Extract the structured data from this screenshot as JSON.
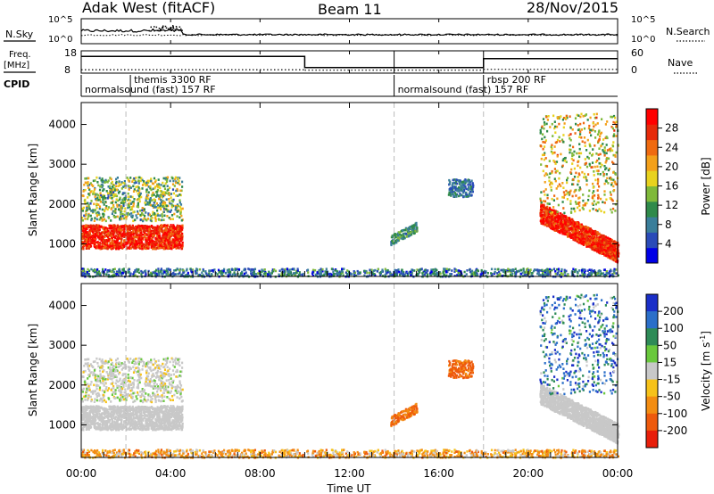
{
  "header": {
    "station": "Adak West (fitACF)",
    "beam": "Beam 11",
    "date": "28/Nov/2015"
  },
  "labels": {
    "nsky": "N.Sky",
    "nsearch": "N.Search",
    "freq_top": "Freq.",
    "freq_unit": "[MHz]",
    "nave": "Nave",
    "cpid": "CPID",
    "xlabel": "Time UT",
    "ylabel_range": "Slant Range [km]",
    "power_label": "Power [dB]",
    "velocity_label_main": "Velocity [m s",
    "velocity_label_exp": "-1",
    "velocity_label_end": "]"
  },
  "noise_panel": {
    "left_ticks": [
      "10^5",
      "10^0"
    ],
    "right_ticks": [
      "10^5",
      "10^0"
    ]
  },
  "freq_panel": {
    "left_ticks": [
      "18",
      "8"
    ],
    "right_ticks": [
      "60",
      "0"
    ],
    "freq_segments": [
      {
        "start": 0,
        "end": 10,
        "value": 15.5
      },
      {
        "start": 10,
        "end": 18,
        "value": 10.5
      },
      {
        "start": 18,
        "end": 24,
        "value": 14.5
      }
    ],
    "nave_segments": [
      {
        "start": 0,
        "end": 10,
        "value": 9
      },
      {
        "start": 10,
        "end": 18,
        "value": 8
      },
      {
        "start": 18,
        "end": 24,
        "value": 10
      }
    ]
  },
  "cpid": [
    {
      "label": "normalsound (fast) 157 RF",
      "t": 0
    },
    {
      "label": "themis 3300 RF",
      "t": 2.2
    },
    {
      "label": "normalsound (fast) 157 RF",
      "t": 14
    },
    {
      "label": "rbsp 200 RF",
      "t": 18
    }
  ],
  "chart_data": {
    "type": "heatmap",
    "title": "Adak West (fitACF)  Beam 11  28/Nov/2015",
    "xlabel": "Time UT",
    "ylabel": "Slant Range [km]",
    "x_ticks": [
      "00:00",
      "04:00",
      "08:00",
      "12:00",
      "16:00",
      "20:00",
      "00:00"
    ],
    "x_range_hours": [
      0,
      24
    ],
    "y_ticks": [
      1000,
      2000,
      3000,
      4000
    ],
    "y_range_km": [
      180,
      4550
    ],
    "mode_change_times_hours": [
      2,
      14,
      18
    ],
    "power": {
      "label": "Power [dB]",
      "range_db": [
        0,
        32
      ],
      "ticks": [
        4,
        8,
        12,
        16,
        20,
        24,
        28
      ],
      "colors": [
        "#0000e6",
        "#2a4bb8",
        "#3a7e9a",
        "#2f8a4a",
        "#7fb93a",
        "#e8d21e",
        "#f3a01a",
        "#ef6a10",
        "#e62a0a",
        "#ff0000"
      ]
    },
    "velocity": {
      "label": "Velocity [m s^-1]",
      "ticks": [
        "200",
        "100",
        "50",
        "15",
        "-15",
        "-50",
        "-100",
        "-200"
      ],
      "colors": [
        "#1a2fc8",
        "#2b6fc9",
        "#2e8b57",
        "#69c83c",
        "#c8c8c8",
        "#f6c21a",
        "#f38d12",
        "#ee5a0c",
        "#e81e0a"
      ]
    },
    "echo_regions": [
      {
        "name": "early ground scatter",
        "t": [
          0,
          4.5
        ],
        "range_km": [
          900,
          1500
        ],
        "power_db": 28,
        "velocity": 0
      },
      {
        "name": "early ionospheric echoes",
        "t": [
          0,
          4.5
        ],
        "range_km": [
          1600,
          2700
        ],
        "power_db": 14,
        "velocity": 0
      },
      {
        "name": "near-range clutter",
        "t": [
          0,
          24
        ],
        "range_km": [
          200,
          400
        ],
        "power_db": 8,
        "velocity": -40
      },
      {
        "name": "midday patch",
        "t": [
          13.8,
          15.0
        ],
        "range_km": [
          1100,
          1450
        ],
        "power_db": 10,
        "velocity": -80
      },
      {
        "name": "afternoon patch",
        "t": [
          16.4,
          17.5
        ],
        "range_km": [
          2200,
          2650
        ],
        "power_db": 8,
        "velocity": -80
      },
      {
        "name": "late ground scatter",
        "t": [
          20.5,
          24
        ],
        "range_km": [
          800,
          1800
        ],
        "power_db": 28,
        "velocity": 0
      },
      {
        "name": "late ionospheric echoes",
        "t": [
          20.5,
          24
        ],
        "range_km": [
          1800,
          4300
        ],
        "power_db": 18,
        "velocity": 100
      }
    ]
  }
}
